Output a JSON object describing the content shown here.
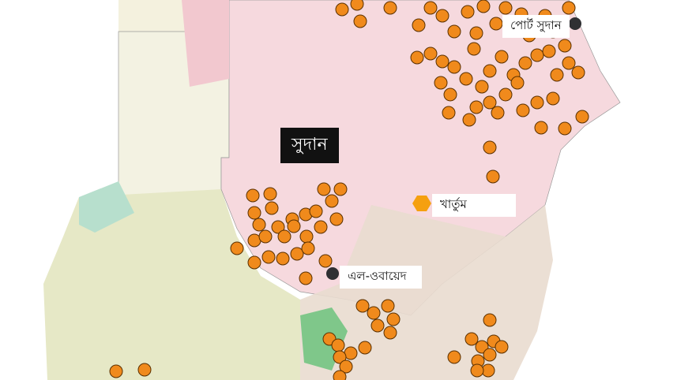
{
  "country_label": "সুদান",
  "cities": [
    {
      "name": "পোর্ট সুদান",
      "marker": "dark-circle"
    },
    {
      "name": "খার্তুম",
      "marker": "orange-hexagon"
    },
    {
      "name": "এল-ওবায়েদ",
      "marker": "dark-circle"
    }
  ],
  "colors": {
    "event_dot": "#f08a1c",
    "event_dot_stroke": "#5a3000",
    "capital_marker": "#f5a00f",
    "city_marker": "#2f3033",
    "sudan_fill": "#f6d9de",
    "south_fill": "#e9dfcf",
    "west_fill": "#e6e8c6"
  }
}
